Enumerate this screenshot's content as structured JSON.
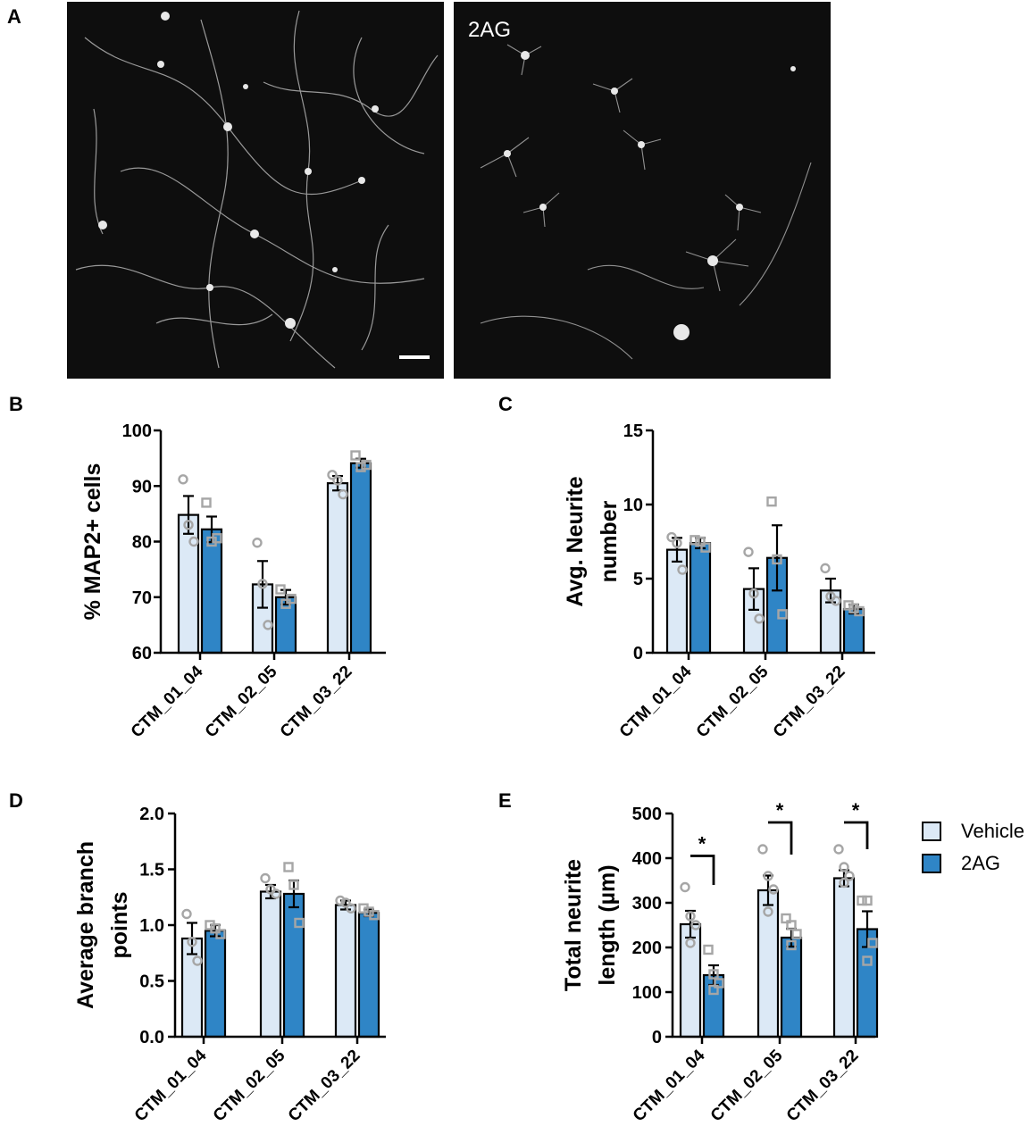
{
  "panel_letters": {
    "a": "A",
    "b": "B",
    "c": "C",
    "d": "D",
    "e": "E"
  },
  "images": {
    "left_label": "",
    "right_label": "2AG"
  },
  "colors": {
    "vehicle": "#dce9f6",
    "treatment": "#2f85c6",
    "points": "#a6a6a6",
    "axis": "#000000"
  },
  "legend": {
    "vehicle": "Vehicle",
    "treatment": "2AG"
  },
  "chart_data": [
    {
      "panel": "B",
      "type": "bar",
      "ylabel": "% MAP2+ cells",
      "ylim": [
        60,
        100
      ],
      "yticks": [
        60,
        70,
        80,
        90,
        100
      ],
      "yticklabels": [
        "60",
        "70",
        "80",
        "90",
        "100"
      ],
      "categories": [
        "CTM_01_04",
        "CTM_02_05",
        "CTM_03_22"
      ],
      "series": [
        {
          "name": "Vehicle",
          "values": [
            84.8,
            72.3,
            90.5
          ],
          "errors": [
            3.4,
            4.2,
            1.3
          ],
          "points": [
            [
              91.2,
              83.0,
              80.0
            ],
            [
              79.8,
              72.4,
              65.0
            ],
            [
              92.0,
              91.0,
              88.5
            ]
          ]
        },
        {
          "name": "2AG",
          "values": [
            82.2,
            70.0,
            94.1
          ],
          "errors": [
            2.3,
            1.3,
            0.8
          ],
          "points": [
            [
              87.0,
              80.0,
              80.6
            ],
            [
              71.4,
              68.8,
              69.7
            ],
            [
              95.5,
              93.4,
              93.8
            ]
          ]
        }
      ],
      "annotations": []
    },
    {
      "panel": "C",
      "type": "bar",
      "ylabel": "Avg. Neurite number",
      "ylim": [
        0,
        15
      ],
      "yticks": [
        0,
        5,
        10,
        15
      ],
      "yticklabels": [
        "0",
        "5",
        "10",
        "15"
      ],
      "categories": [
        "CTM_01_04",
        "CTM_02_05",
        "CTM_03_22"
      ],
      "series": [
        {
          "name": "Vehicle",
          "values": [
            6.95,
            4.3,
            4.2
          ],
          "errors": [
            0.8,
            1.4,
            0.8
          ],
          "points": [
            [
              7.8,
              7.4,
              5.6
            ],
            [
              6.8,
              4.0,
              2.3
            ],
            [
              5.7,
              3.8,
              3.5
            ]
          ]
        },
        {
          "name": "2AG",
          "values": [
            7.4,
            6.4,
            2.95
          ],
          "errors": [
            0.35,
            2.2,
            0.3
          ],
          "points": [
            [
              7.6,
              7.5,
              7.1
            ],
            [
              10.2,
              6.3,
              2.6
            ],
            [
              3.2,
              3.0,
              2.8
            ]
          ]
        }
      ],
      "annotations": []
    },
    {
      "panel": "D",
      "type": "bar",
      "ylabel": "Average branch points",
      "ylim": [
        0,
        2
      ],
      "yticks": [
        0,
        0.5,
        1.0,
        1.5,
        2.0
      ],
      "yticklabels": [
        "0.0",
        "0.5",
        "1.0",
        "1.5",
        "2.0"
      ],
      "categories": [
        "CTM_01_04",
        "CTM_02_05",
        "CTM_03_22"
      ],
      "series": [
        {
          "name": "Vehicle",
          "values": [
            0.88,
            1.3,
            1.18
          ],
          "errors": [
            0.14,
            0.06,
            0.04
          ],
          "points": [
            [
              1.1,
              0.85,
              0.68
            ],
            [
              1.42,
              1.32,
              1.28
            ],
            [
              1.22,
              1.2,
              1.15
            ]
          ]
        },
        {
          "name": "2AG",
          "values": [
            0.95,
            1.28,
            1.11
          ],
          "errors": [
            0.05,
            0.12,
            0.03
          ],
          "points": [
            [
              1.0,
              0.97,
              0.92
            ],
            [
              1.52,
              1.36,
              1.02
            ],
            [
              1.15,
              1.12,
              1.09
            ]
          ]
        }
      ],
      "annotations": []
    },
    {
      "panel": "E",
      "type": "bar",
      "ylabel": "Total neurite length (µm)",
      "ylim": [
        0,
        500
      ],
      "yticks": [
        0,
        100,
        200,
        300,
        400,
        500
      ],
      "yticklabels": [
        "0",
        "100",
        "200",
        "300",
        "400",
        "500"
      ],
      "categories": [
        "CTM_01_04",
        "CTM_02_05",
        "CTM_03_22"
      ],
      "series": [
        {
          "name": "Vehicle",
          "values": [
            252,
            328,
            355
          ],
          "errors": [
            30,
            33,
            18
          ],
          "points": [
            [
              335,
              270,
              250,
              210
            ],
            [
              420,
              360,
              330,
              280
            ],
            [
              420,
              380,
              360,
              345
            ]
          ]
        },
        {
          "name": "2AG",
          "values": [
            138,
            222,
            241
          ],
          "errors": [
            22,
            20,
            40
          ],
          "points": [
            [
              195,
              140,
              120,
              105
            ],
            [
              265,
              250,
              230,
              205
            ],
            [
              305,
              305,
              210,
              170
            ]
          ]
        }
      ],
      "annotations": [
        {
          "category": 0,
          "label": "*",
          "left_top": 405,
          "right_top": 340
        },
        {
          "category": 1,
          "label": "*",
          "left_top": 480,
          "right_top": 408
        },
        {
          "category": 2,
          "label": "*",
          "left_top": 480,
          "right_top": 420
        }
      ]
    }
  ]
}
